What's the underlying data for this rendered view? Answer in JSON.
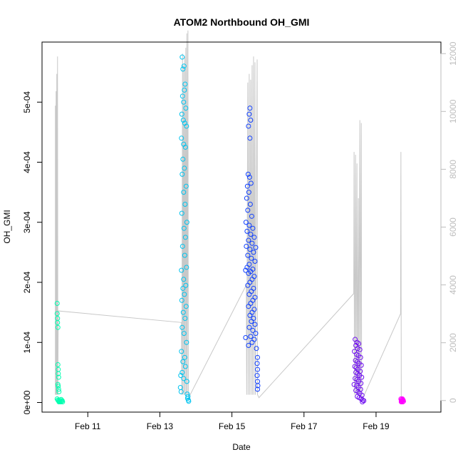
{
  "chart_data": {
    "type": "scatter",
    "title": "ATOM2 Northbound OH_GMI",
    "xlabel": "Date",
    "ylabel": "OH_GMI",
    "x_tick_labels": [
      "Feb 11",
      "Feb 13",
      "Feb 15",
      "Feb 17",
      "Feb 19"
    ],
    "x_tick_values": [
      11,
      13,
      15,
      17,
      19
    ],
    "xlim": [
      9.73,
      20.8
    ],
    "y_tick_labels": [
      "0e+00",
      "1e-04",
      "2e-04",
      "3e-04",
      "4e-04",
      "5e-04"
    ],
    "y_tick_values": [
      0,
      0.0001,
      0.0002,
      0.0003,
      0.0004,
      0.0005
    ],
    "ylim": [
      -1.6e-05,
      0.0006
    ],
    "y2_tick_labels": [
      "0",
      "2000",
      "4000",
      "6000",
      "8000",
      "10000",
      "12000"
    ],
    "y2_tick_values": [
      0,
      2000,
      4000,
      6000,
      8000,
      10000,
      12000
    ],
    "y2lim": [
      -400,
      12400
    ],
    "grid": false,
    "legend": "none",
    "point_colors": {
      "flight1": "#00ffb0",
      "flight2": "#00c4f0",
      "flight3": "#1040ff",
      "flight4": "#7010f0",
      "flight5": "#ff00ff"
    },
    "line_color": "#c8c8c8",
    "series": [
      {
        "color": "#00ffb0",
        "points": [
          [
            10.15,
            0.000165
          ],
          [
            10.15,
            0.000148
          ],
          [
            10.16,
            0.00014
          ],
          [
            10.16,
            0.000133
          ],
          [
            10.17,
            0.000125
          ],
          [
            10.17,
            6.3e-05
          ],
          [
            10.18,
            5.5e-05
          ],
          [
            10.18,
            4.8e-05
          ],
          [
            10.19,
            4.2e-05
          ],
          [
            10.17,
            3e-05
          ],
          [
            10.18,
            2.7e-05
          ],
          [
            10.19,
            2.2e-05
          ],
          [
            10.2,
            1.8e-05
          ],
          [
            10.15,
            6e-06
          ],
          [
            10.17,
            4e-06
          ],
          [
            10.19,
            3e-06
          ],
          [
            10.21,
            2e-06
          ],
          [
            10.23,
            2e-06
          ],
          [
            10.25,
            1e-06
          ],
          [
            10.27,
            2e-06
          ],
          [
            10.29,
            3e-06
          ],
          [
            10.3,
            1e-06
          ],
          [
            10.22,
            4e-06
          ],
          [
            10.26,
            5e-06
          ],
          [
            10.2,
            1e-06
          ]
        ]
      },
      {
        "color": "#00c4f0",
        "points": [
          [
            13.62,
            0.000575
          ],
          [
            13.67,
            0.00056
          ],
          [
            13.64,
            0.000555
          ],
          [
            13.7,
            0.00053
          ],
          [
            13.68,
            0.00052
          ],
          [
            13.63,
            0.00051
          ],
          [
            13.66,
            0.0005
          ],
          [
            13.72,
            0.00049
          ],
          [
            13.61,
            0.00048
          ],
          [
            13.65,
            0.00047
          ],
          [
            13.69,
            0.000465
          ],
          [
            13.74,
            0.00046
          ],
          [
            13.6,
            0.00044
          ],
          [
            13.66,
            0.00043
          ],
          [
            13.71,
            0.000425
          ],
          [
            13.64,
            0.000405
          ],
          [
            13.68,
            0.00039
          ],
          [
            13.62,
            0.00038
          ],
          [
            13.73,
            0.00036
          ],
          [
            13.66,
            0.00035
          ],
          [
            13.7,
            0.00033
          ],
          [
            13.61,
            0.000315
          ],
          [
            13.75,
            0.0003
          ],
          [
            13.67,
            0.00029
          ],
          [
            13.71,
            0.000275
          ],
          [
            13.63,
            0.00026
          ],
          [
            13.69,
            0.000245
          ],
          [
            13.74,
            0.000225
          ],
          [
            13.6,
            0.00022
          ],
          [
            13.66,
            0.000205
          ],
          [
            13.72,
            0.000195
          ],
          [
            13.64,
            0.00019
          ],
          [
            13.68,
            0.00018
          ],
          [
            13.61,
            0.00017
          ],
          [
            13.73,
            0.00016
          ],
          [
            13.65,
            0.00015
          ],
          [
            13.7,
            0.00014
          ],
          [
            13.62,
            0.000125
          ],
          [
            13.67,
            0.000115
          ],
          [
            13.74,
            0.0001
          ],
          [
            13.6,
            8.5e-05
          ],
          [
            13.69,
            7.5e-05
          ],
          [
            13.64,
            6.8e-05
          ],
          [
            13.71,
            6e-05
          ],
          [
            13.62,
            5e-05
          ],
          [
            13.58,
            4.5e-05
          ],
          [
            13.66,
            4e-05
          ],
          [
            13.57,
            2.5e-05
          ],
          [
            13.59,
            1.8e-05
          ],
          [
            13.75,
            3.5e-05
          ],
          [
            13.78,
            1e-05
          ],
          [
            13.79,
            4e-06
          ],
          [
            13.8,
            2e-06
          ],
          [
            13.77,
            7e-06
          ],
          [
            13.76,
            1.4e-05
          ]
        ]
      },
      {
        "color": "#1040ff",
        "points": [
          [
            15.5,
            0.00049
          ],
          [
            15.48,
            0.00048
          ],
          [
            15.52,
            0.00047
          ],
          [
            15.46,
            0.00046
          ],
          [
            15.5,
            0.00044
          ],
          [
            15.45,
            0.00038
          ],
          [
            15.49,
            0.000375
          ],
          [
            15.53,
            0.000365
          ],
          [
            15.43,
            0.00036
          ],
          [
            15.47,
            0.00035
          ],
          [
            15.41,
            0.00034
          ],
          [
            15.51,
            0.00033
          ],
          [
            15.44,
            0.00032
          ],
          [
            15.55,
            0.00031
          ],
          [
            15.39,
            0.0003
          ],
          [
            15.48,
            0.000295
          ],
          [
            15.58,
            0.00029
          ],
          [
            15.42,
            0.000285
          ],
          [
            15.52,
            0.00028
          ],
          [
            15.62,
            0.000275
          ],
          [
            15.46,
            0.00027
          ],
          [
            15.56,
            0.000265
          ],
          [
            15.4,
            0.00026
          ],
          [
            15.66,
            0.000258
          ],
          [
            15.5,
            0.000255
          ],
          [
            15.6,
            0.00025
          ],
          [
            15.44,
            0.000245
          ],
          [
            15.54,
            0.00024
          ],
          [
            15.64,
            0.000235
          ],
          [
            15.48,
            0.00023
          ],
          [
            15.42,
            0.000225
          ],
          [
            15.58,
            0.000222
          ],
          [
            15.38,
            0.00022
          ],
          [
            15.52,
            0.000218
          ],
          [
            15.46,
            0.000215
          ],
          [
            15.62,
            0.00021
          ],
          [
            15.56,
            0.000205
          ],
          [
            15.5,
            0.0002
          ],
          [
            15.44,
            0.000195
          ],
          [
            15.6,
            0.00019
          ],
          [
            15.54,
            0.000185
          ],
          [
            15.48,
            0.00018
          ],
          [
            15.64,
            0.000175
          ],
          [
            15.58,
            0.00017
          ],
          [
            15.52,
            0.000165
          ],
          [
            15.46,
            0.00016
          ],
          [
            15.62,
            0.000155
          ],
          [
            15.56,
            0.00015
          ],
          [
            15.5,
            0.000145
          ],
          [
            15.6,
            0.00014
          ],
          [
            15.54,
            0.000135
          ],
          [
            15.64,
            0.00013
          ],
          [
            15.48,
            0.000125
          ],
          [
            15.58,
            0.00012
          ],
          [
            15.66,
            0.000115
          ],
          [
            15.52,
            0.00011
          ],
          [
            15.38,
            0.000108
          ],
          [
            15.62,
            0.000105
          ],
          [
            15.56,
            0.0001
          ],
          [
            15.46,
            9.5e-05
          ],
          [
            15.68,
            9e-05
          ],
          [
            15.71,
            7.5e-05
          ],
          [
            15.7,
            6.5e-05
          ],
          [
            15.71,
            5.5e-05
          ],
          [
            15.7,
            4.5e-05
          ],
          [
            15.71,
            3.5e-05
          ],
          [
            15.72,
            2.8e-05
          ],
          [
            15.71,
            2.2e-05
          ]
        ]
      },
      {
        "color": "#7010f0",
        "points": [
          [
            18.42,
            0.000105
          ],
          [
            18.47,
            0.0001
          ],
          [
            18.52,
            9.8e-05
          ],
          [
            18.44,
            9.5e-05
          ],
          [
            18.49,
            9e-05
          ],
          [
            18.55,
            8.8e-05
          ],
          [
            18.4,
            8.5e-05
          ],
          [
            18.46,
            8e-05
          ],
          [
            18.51,
            7.8e-05
          ],
          [
            18.57,
            7.5e-05
          ],
          [
            18.43,
            7e-05
          ],
          [
            18.48,
            6.8e-05
          ],
          [
            18.53,
            6.5e-05
          ],
          [
            18.59,
            6.2e-05
          ],
          [
            18.41,
            6e-05
          ],
          [
            18.45,
            5.8e-05
          ],
          [
            18.5,
            5.5e-05
          ],
          [
            18.56,
            5.2e-05
          ],
          [
            18.44,
            5e-05
          ],
          [
            18.49,
            4.8e-05
          ],
          [
            18.54,
            4.5e-05
          ],
          [
            18.6,
            4.2e-05
          ],
          [
            18.42,
            4e-05
          ],
          [
            18.47,
            3.8e-05
          ],
          [
            18.52,
            3.5e-05
          ],
          [
            18.58,
            3.2e-05
          ],
          [
            18.39,
            3e-05
          ],
          [
            18.46,
            2.8e-05
          ],
          [
            18.51,
            2.5e-05
          ],
          [
            18.57,
            2.2e-05
          ],
          [
            18.44,
            2e-05
          ],
          [
            18.5,
            1.8e-05
          ],
          [
            18.55,
            1.5e-05
          ],
          [
            18.61,
            1.2e-05
          ],
          [
            18.48,
            1e-05
          ],
          [
            18.53,
            8e-06
          ],
          [
            18.59,
            6e-06
          ],
          [
            18.63,
            4e-06
          ],
          [
            18.66,
            3e-06
          ],
          [
            18.62,
            1e-06
          ]
        ]
      },
      {
        "color": "#ff00ff",
        "points": [
          [
            19.69,
            6e-06
          ],
          [
            19.7,
            4e-06
          ],
          [
            19.71,
            2e-06
          ],
          [
            19.72,
            5e-06
          ],
          [
            19.73,
            3e-06
          ],
          [
            19.74,
            1e-06
          ],
          [
            19.75,
            4e-06
          ],
          [
            19.76,
            2e-06
          ],
          [
            19.7,
            1e-06
          ],
          [
            19.73,
            6e-06
          ]
        ]
      }
    ],
    "altitude_line": [
      [
        10.1,
        200
      ],
      [
        10.1,
        10200
      ],
      [
        10.11,
        200
      ],
      [
        10.12,
        10700
      ],
      [
        10.13,
        200
      ],
      [
        10.14,
        11300
      ],
      [
        10.15,
        200
      ],
      [
        10.16,
        11900
      ],
      [
        10.17,
        200
      ],
      [
        10.18,
        3100
      ],
      [
        13.6,
        2700
      ],
      [
        13.61,
        200
      ],
      [
        13.63,
        12000
      ],
      [
        13.64,
        200
      ],
      [
        13.66,
        11600
      ],
      [
        13.67,
        200
      ],
      [
        13.69,
        11900
      ],
      [
        13.7,
        200
      ],
      [
        13.72,
        12200
      ],
      [
        13.73,
        200
      ],
      [
        13.75,
        12700
      ],
      [
        13.76,
        200
      ],
      [
        13.78,
        12800
      ],
      [
        13.79,
        200
      ],
      [
        13.8,
        100
      ],
      [
        15.4,
        4000
      ],
      [
        15.41,
        200
      ],
      [
        15.44,
        11000
      ],
      [
        15.45,
        200
      ],
      [
        15.48,
        11300
      ],
      [
        15.49,
        200
      ],
      [
        15.52,
        11100
      ],
      [
        15.53,
        200
      ],
      [
        15.56,
        11600
      ],
      [
        15.57,
        200
      ],
      [
        15.6,
        11900
      ],
      [
        15.61,
        200
      ],
      [
        15.64,
        11700
      ],
      [
        15.65,
        200
      ],
      [
        15.7,
        11800
      ],
      [
        15.71,
        200
      ],
      [
        15.75,
        100
      ],
      [
        18.38,
        3700
      ],
      [
        18.39,
        8600
      ],
      [
        18.4,
        200
      ],
      [
        18.43,
        8500
      ],
      [
        18.44,
        200
      ],
      [
        18.47,
        8200
      ],
      [
        18.48,
        200
      ],
      [
        18.51,
        7000
      ],
      [
        18.52,
        200
      ],
      [
        18.55,
        9700
      ],
      [
        18.56,
        200
      ],
      [
        18.59,
        9600
      ],
      [
        18.6,
        200
      ],
      [
        18.64,
        100
      ],
      [
        19.68,
        3000
      ],
      [
        19.69,
        8600
      ],
      [
        19.7,
        200
      ],
      [
        19.71,
        100
      ]
    ]
  }
}
